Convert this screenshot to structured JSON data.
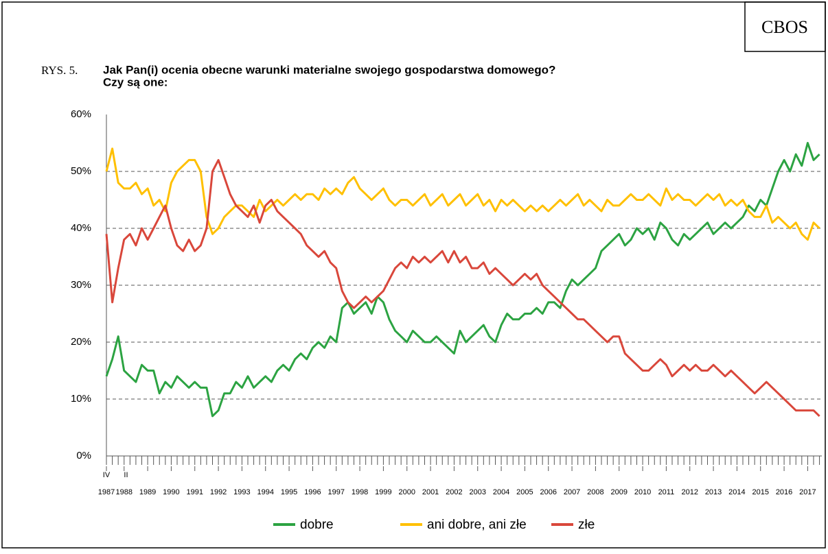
{
  "chart_data": {
    "type": "line",
    "source": "CBOS",
    "figure_label": "RYS. 5.",
    "title": [
      "Jak Pan(i) ocenia obecne warunki materialne swojego gospodarstwa domowego?",
      "Czy są one:"
    ],
    "x": [
      1987.25,
      1987.5,
      1987.75,
      1988,
      1988.25,
      1988.5,
      1988.75,
      1989,
      1989.25,
      1989.5,
      1989.75,
      1990,
      1990.25,
      1990.5,
      1990.75,
      1991,
      1991.25,
      1991.5,
      1991.75,
      1992,
      1992.25,
      1992.5,
      1992.75,
      1993,
      1993.25,
      1993.5,
      1993.75,
      1994,
      1994.25,
      1994.5,
      1994.75,
      1995,
      1995.25,
      1995.5,
      1995.75,
      1996,
      1996.25,
      1996.5,
      1996.75,
      1997,
      1997.25,
      1997.5,
      1997.75,
      1998,
      1998.25,
      1998.5,
      1998.75,
      1999,
      1999.25,
      1999.5,
      1999.75,
      2000,
      2000.25,
      2000.5,
      2000.75,
      2001,
      2001.25,
      2001.5,
      2001.75,
      2002,
      2002.25,
      2002.5,
      2002.75,
      2003,
      2003.25,
      2003.5,
      2003.75,
      2004,
      2004.25,
      2004.5,
      2004.75,
      2005,
      2005.25,
      2005.5,
      2005.75,
      2006,
      2006.25,
      2006.5,
      2006.75,
      2007,
      2007.25,
      2007.5,
      2007.75,
      2008,
      2008.25,
      2008.5,
      2008.75,
      2009,
      2009.25,
      2009.5,
      2009.75,
      2010,
      2010.25,
      2010.5,
      2010.75,
      2011,
      2011.25,
      2011.5,
      2011.75,
      2012,
      2012.25,
      2012.5,
      2012.75,
      2013,
      2013.25,
      2013.5,
      2013.75,
      2014,
      2014.25,
      2014.5,
      2014.75,
      2015,
      2015.25,
      2015.5,
      2015.75,
      2016,
      2016.25,
      2016.5,
      2016.75,
      2017,
      2017.25,
      2017.5
    ],
    "series": [
      {
        "name": "dobre",
        "color": "#2ca342",
        "values": [
          14,
          17,
          21,
          15,
          14,
          13,
          16,
          15,
          15,
          11,
          13,
          12,
          14,
          13,
          12,
          13,
          12,
          12,
          7,
          8,
          11,
          11,
          13,
          12,
          14,
          12,
          13,
          14,
          13,
          15,
          16,
          15,
          17,
          18,
          17,
          19,
          20,
          19,
          21,
          20,
          26,
          27,
          25,
          26,
          27,
          25,
          28,
          27,
          24,
          22,
          21,
          20,
          22,
          21,
          20,
          20,
          21,
          20,
          19,
          18,
          22,
          20,
          21,
          22,
          23,
          21,
          20,
          23,
          25,
          24,
          24,
          25,
          25,
          26,
          25,
          27,
          27,
          26,
          29,
          31,
          30,
          31,
          32,
          33,
          36,
          37,
          38,
          39,
          37,
          38,
          40,
          39,
          40,
          38,
          41,
          40,
          38,
          37,
          39,
          38,
          39,
          40,
          41,
          39,
          40,
          41,
          40,
          41,
          42,
          44,
          43,
          45,
          44,
          47,
          50,
          52,
          50,
          53,
          51,
          55,
          52,
          53
        ]
      },
      {
        "name": "ani dobre, ani złe",
        "color": "#ffc000",
        "values": [
          50,
          54,
          48,
          47,
          47,
          48,
          46,
          47,
          44,
          45,
          43,
          48,
          50,
          51,
          52,
          52,
          50,
          42,
          39,
          40,
          42,
          43,
          44,
          44,
          43,
          42,
          45,
          43,
          44,
          45,
          44,
          45,
          46,
          45,
          46,
          46,
          45,
          47,
          46,
          47,
          46,
          48,
          49,
          47,
          46,
          45,
          46,
          47,
          45,
          44,
          45,
          45,
          44,
          45,
          46,
          44,
          45,
          46,
          44,
          45,
          46,
          44,
          45,
          46,
          44,
          45,
          43,
          45,
          44,
          45,
          44,
          43,
          44,
          43,
          44,
          43,
          44,
          45,
          44,
          45,
          46,
          44,
          45,
          44,
          43,
          45,
          44,
          44,
          45,
          46,
          45,
          45,
          46,
          45,
          44,
          47,
          45,
          46,
          45,
          45,
          44,
          45,
          46,
          45,
          46,
          44,
          45,
          44,
          45,
          43,
          42,
          42,
          44,
          41,
          42,
          41,
          40,
          41,
          39,
          38,
          41,
          40
        ]
      },
      {
        "name": "złe",
        "color": "#d9473b",
        "values": [
          39,
          27,
          33,
          38,
          39,
          37,
          40,
          38,
          40,
          42,
          44,
          40,
          37,
          36,
          38,
          36,
          37,
          40,
          50,
          52,
          49,
          46,
          44,
          43,
          42,
          44,
          41,
          44,
          45,
          43,
          42,
          41,
          40,
          39,
          37,
          36,
          35,
          36,
          34,
          33,
          29,
          27,
          26,
          27,
          28,
          27,
          28,
          29,
          31,
          33,
          34,
          33,
          35,
          34,
          35,
          34,
          35,
          36,
          34,
          36,
          34,
          35,
          33,
          33,
          34,
          32,
          33,
          32,
          31,
          30,
          31,
          32,
          31,
          32,
          30,
          29,
          28,
          27,
          26,
          25,
          24,
          24,
          23,
          22,
          21,
          20,
          21,
          21,
          18,
          17,
          16,
          15,
          15,
          16,
          17,
          16,
          14,
          15,
          16,
          15,
          16,
          15,
          15,
          16,
          15,
          14,
          15,
          14,
          13,
          12,
          11,
          12,
          13,
          12,
          11,
          10,
          9,
          8,
          8,
          8,
          8,
          7
        ]
      }
    ],
    "xlim": [
      1987.25,
      2017.6
    ],
    "xticks": [
      {
        "value": 1987.25,
        "label": "1987"
      },
      1988,
      1989,
      1990,
      1991,
      1992,
      1993,
      1994,
      1995,
      1996,
      1997,
      1998,
      1999,
      2000,
      2001,
      2002,
      2003,
      2004,
      2005,
      2006,
      2007,
      2008,
      2009,
      2010,
      2011,
      2012,
      2013,
      2014,
      2015,
      2016,
      2017
    ],
    "month_marks": [
      {
        "value": 1987.25,
        "label": "IV"
      },
      {
        "value": 1988.08,
        "label": "II"
      }
    ],
    "ylim": [
      0,
      60
    ],
    "yticks": [
      {
        "value": 0,
        "label": "0%"
      },
      {
        "value": 10,
        "label": "10%"
      },
      {
        "value": 20,
        "label": "20%"
      },
      {
        "value": 30,
        "label": "30%"
      },
      {
        "value": 40,
        "label": "40%"
      },
      {
        "value": 50,
        "label": "50%"
      },
      {
        "value": 60,
        "label": "60%"
      }
    ],
    "grid": true,
    "legend": "bottom"
  }
}
